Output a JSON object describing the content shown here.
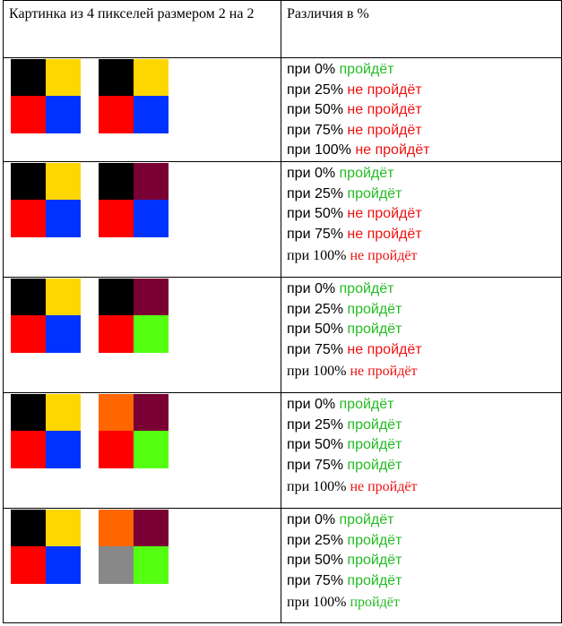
{
  "header": {
    "col1": "Картинка из 4 пикселей размером 2 на 2",
    "col2": "Различия в %"
  },
  "colors": {
    "pass": "#22bb22",
    "fail": "#ee1111"
  },
  "rows": [
    {
      "left": [
        "#000000",
        "#ffd700",
        "#ff0000",
        "#0033ff"
      ],
      "right": [
        "#000000",
        "#ffd700",
        "#ff0000",
        "#0033ff"
      ],
      "results": [
        {
          "prefix": "при 0%",
          "result": "пройдёт",
          "pass": true
        },
        {
          "prefix": "при 25%",
          "result": "не пройдёт",
          "pass": false
        },
        {
          "prefix": "при 50%",
          "result": "не пройдёт",
          "pass": false
        },
        {
          "prefix": "при 75%",
          "result": "не пройдёт",
          "pass": false
        },
        {
          "prefix": "при 100%",
          "result": "не пройдёт",
          "pass": false
        }
      ]
    },
    {
      "left": [
        "#000000",
        "#ffd700",
        "#ff0000",
        "#0033ff"
      ],
      "right": [
        "#000000",
        "#7a0033",
        "#ff0000",
        "#0033ff"
      ],
      "results": [
        {
          "prefix": "при 0%",
          "result": "пройдёт",
          "pass": true
        },
        {
          "prefix": "при 25%",
          "result": "пройдёт",
          "pass": true
        },
        {
          "prefix": "при 50%",
          "result": "не пройдёт",
          "pass": false
        },
        {
          "prefix": "при 75%",
          "result": "не пройдёт",
          "pass": false
        },
        {
          "prefix": "при 100%",
          "result": "не пройдёт",
          "pass": false
        }
      ]
    },
    {
      "left": [
        "#000000",
        "#ffd700",
        "#ff0000",
        "#0033ff"
      ],
      "right": [
        "#000000",
        "#7a0033",
        "#ff0000",
        "#55ff11"
      ],
      "results": [
        {
          "prefix": "при 0%",
          "result": "пройдёт",
          "pass": true
        },
        {
          "prefix": "при 25%",
          "result": "пройдёт",
          "pass": true
        },
        {
          "prefix": "при 50%",
          "result": "пройдёт",
          "pass": true
        },
        {
          "prefix": "при 75%",
          "result": "не пройдёт",
          "pass": false
        },
        {
          "prefix": "при 100%",
          "result": "не пройдёт",
          "pass": false
        }
      ]
    },
    {
      "left": [
        "#000000",
        "#ffd700",
        "#ff0000",
        "#0033ff"
      ],
      "right": [
        "#ff6600",
        "#7a0033",
        "#ff0000",
        "#55ff11"
      ],
      "results": [
        {
          "prefix": "при 0%",
          "result": "пройдёт",
          "pass": true
        },
        {
          "prefix": "при 25%",
          "result": "пройдёт",
          "pass": true
        },
        {
          "prefix": "при 50%",
          "result": "пройдёт",
          "pass": true
        },
        {
          "prefix": "при 75%",
          "result": "пройдёт",
          "pass": true
        },
        {
          "prefix": "при 100%",
          "result": "не пройдёт",
          "pass": false
        }
      ]
    },
    {
      "left": [
        "#000000",
        "#ffd700",
        "#ff0000",
        "#0033ff"
      ],
      "right": [
        "#ff6600",
        "#7a0033",
        "#888888",
        "#55ff11"
      ],
      "results": [
        {
          "prefix": "при 0%",
          "result": "пройдёт",
          "pass": true
        },
        {
          "prefix": "при 25%",
          "result": "пройдёт",
          "pass": true
        },
        {
          "prefix": "при 50%",
          "result": "пройдёт",
          "pass": true
        },
        {
          "prefix": "при 75%",
          "result": "пройдёт",
          "pass": true
        },
        {
          "prefix": "при 100%",
          "result": "пройдёт",
          "pass": true
        }
      ]
    }
  ]
}
